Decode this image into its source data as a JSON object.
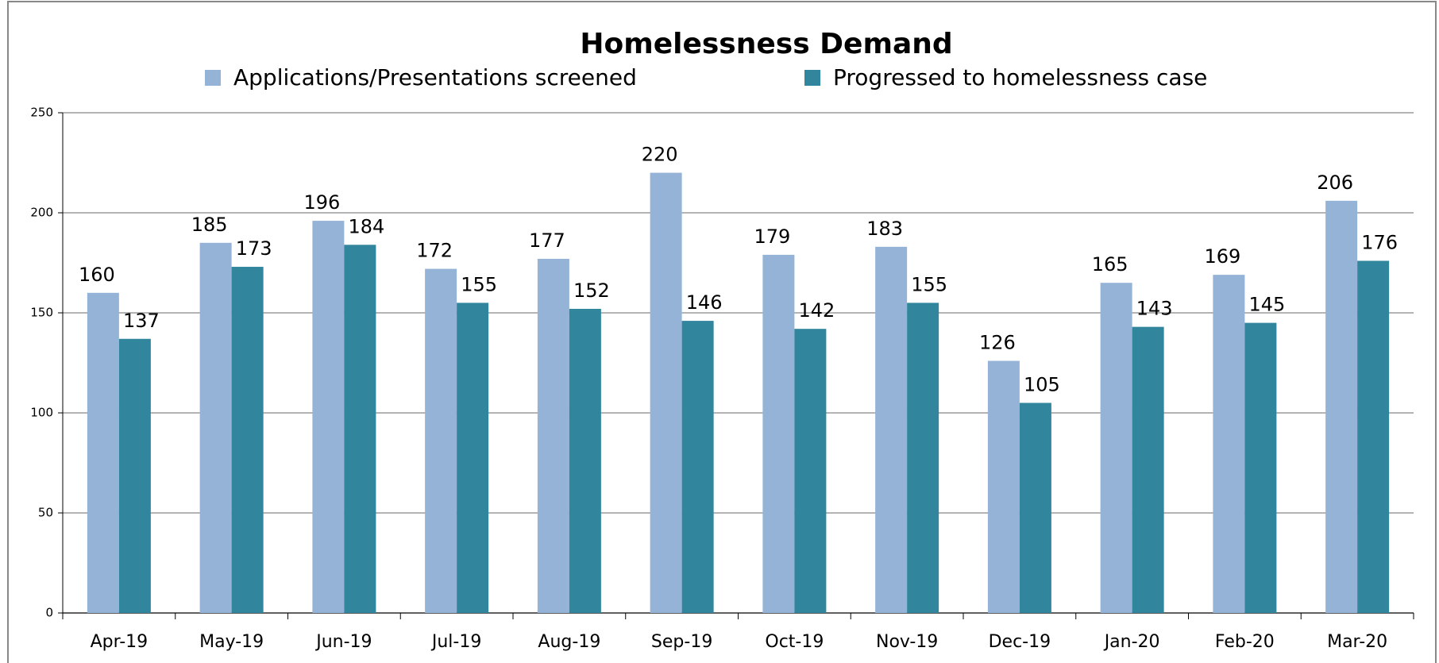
{
  "chart_data": {
    "type": "bar",
    "title": "Homelessness Demand",
    "categories": [
      "Apr-19",
      "May-19",
      "Jun-19",
      "Jul-19",
      "Aug-19",
      "Sep-19",
      "Oct-19",
      "Nov-19",
      "Dec-19",
      "Jan-20",
      "Feb-20",
      "Mar-20"
    ],
    "series": [
      {
        "name": "Applications/Presentations screened",
        "color": "#95b3d7",
        "values": [
          160,
          185,
          196,
          172,
          177,
          220,
          179,
          183,
          126,
          165,
          169,
          206
        ]
      },
      {
        "name": "Progressed to homelessness case",
        "color": "#31859c",
        "values": [
          137,
          173,
          184,
          155,
          152,
          146,
          142,
          155,
          105,
          143,
          145,
          176
        ]
      }
    ],
    "ylim": [
      0,
      250
    ],
    "yticks": [
      0,
      50,
      100,
      150,
      200,
      250
    ],
    "grid": true,
    "legend": "top"
  }
}
